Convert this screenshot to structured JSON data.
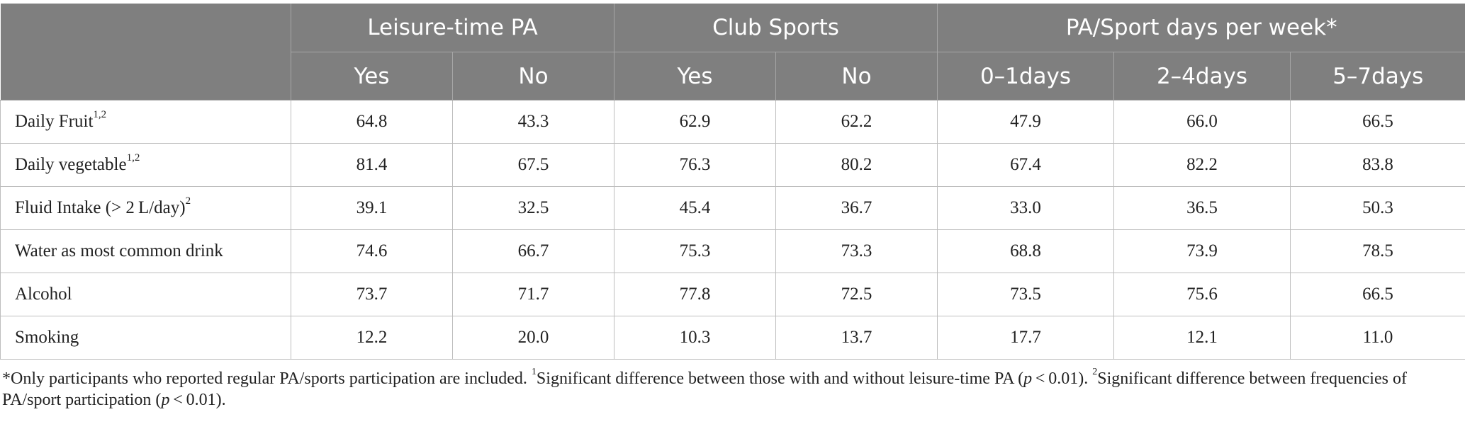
{
  "table": {
    "group_headers": [
      "Leisure-time PA",
      "Club Sports",
      "PA/Sport days per week*"
    ],
    "sub_headers": [
      "Yes",
      "No",
      "Yes",
      "No",
      "0–1days",
      "2–4days",
      "5–7days"
    ],
    "rows": [
      {
        "label": "Daily Fruit",
        "sup": "1,2",
        "values": [
          "64.8",
          "43.3",
          "62.9",
          "62.2",
          "47.9",
          "66.0",
          "66.5"
        ]
      },
      {
        "label": "Daily vegetable",
        "sup": "1,2",
        "values": [
          "81.4",
          "67.5",
          "76.3",
          "80.2",
          "67.4",
          "82.2",
          "83.8"
        ]
      },
      {
        "label": "Fluid Intake (> 2 L/day)",
        "sup": "2",
        "values": [
          "39.1",
          "32.5",
          "45.4",
          "36.7",
          "33.0",
          "36.5",
          "50.3"
        ]
      },
      {
        "label": "Water as most common drink",
        "sup": "",
        "values": [
          "74.6",
          "66.7",
          "75.3",
          "73.3",
          "68.8",
          "73.9",
          "78.5"
        ]
      },
      {
        "label": "Alcohol",
        "sup": "",
        "values": [
          "73.7",
          "71.7",
          "77.8",
          "72.5",
          "73.5",
          "75.6",
          "66.5"
        ]
      },
      {
        "label": "Smoking",
        "sup": "",
        "values": [
          "12.2",
          "20.0",
          "10.3",
          "13.7",
          "17.7",
          "12.1",
          "11.0"
        ]
      }
    ]
  },
  "footnote": {
    "part1": "*Only participants who reported regular PA/sports participation are included. ",
    "sup1": "1",
    "part2": "Significant difference between those with and without leisure-time PA (",
    "p1": "p",
    "part3": " < 0.01). ",
    "sup2": "2",
    "part4": "Significant difference between frequencies of PA/sport participation (",
    "p2": "p",
    "part5": " < 0.01)."
  }
}
